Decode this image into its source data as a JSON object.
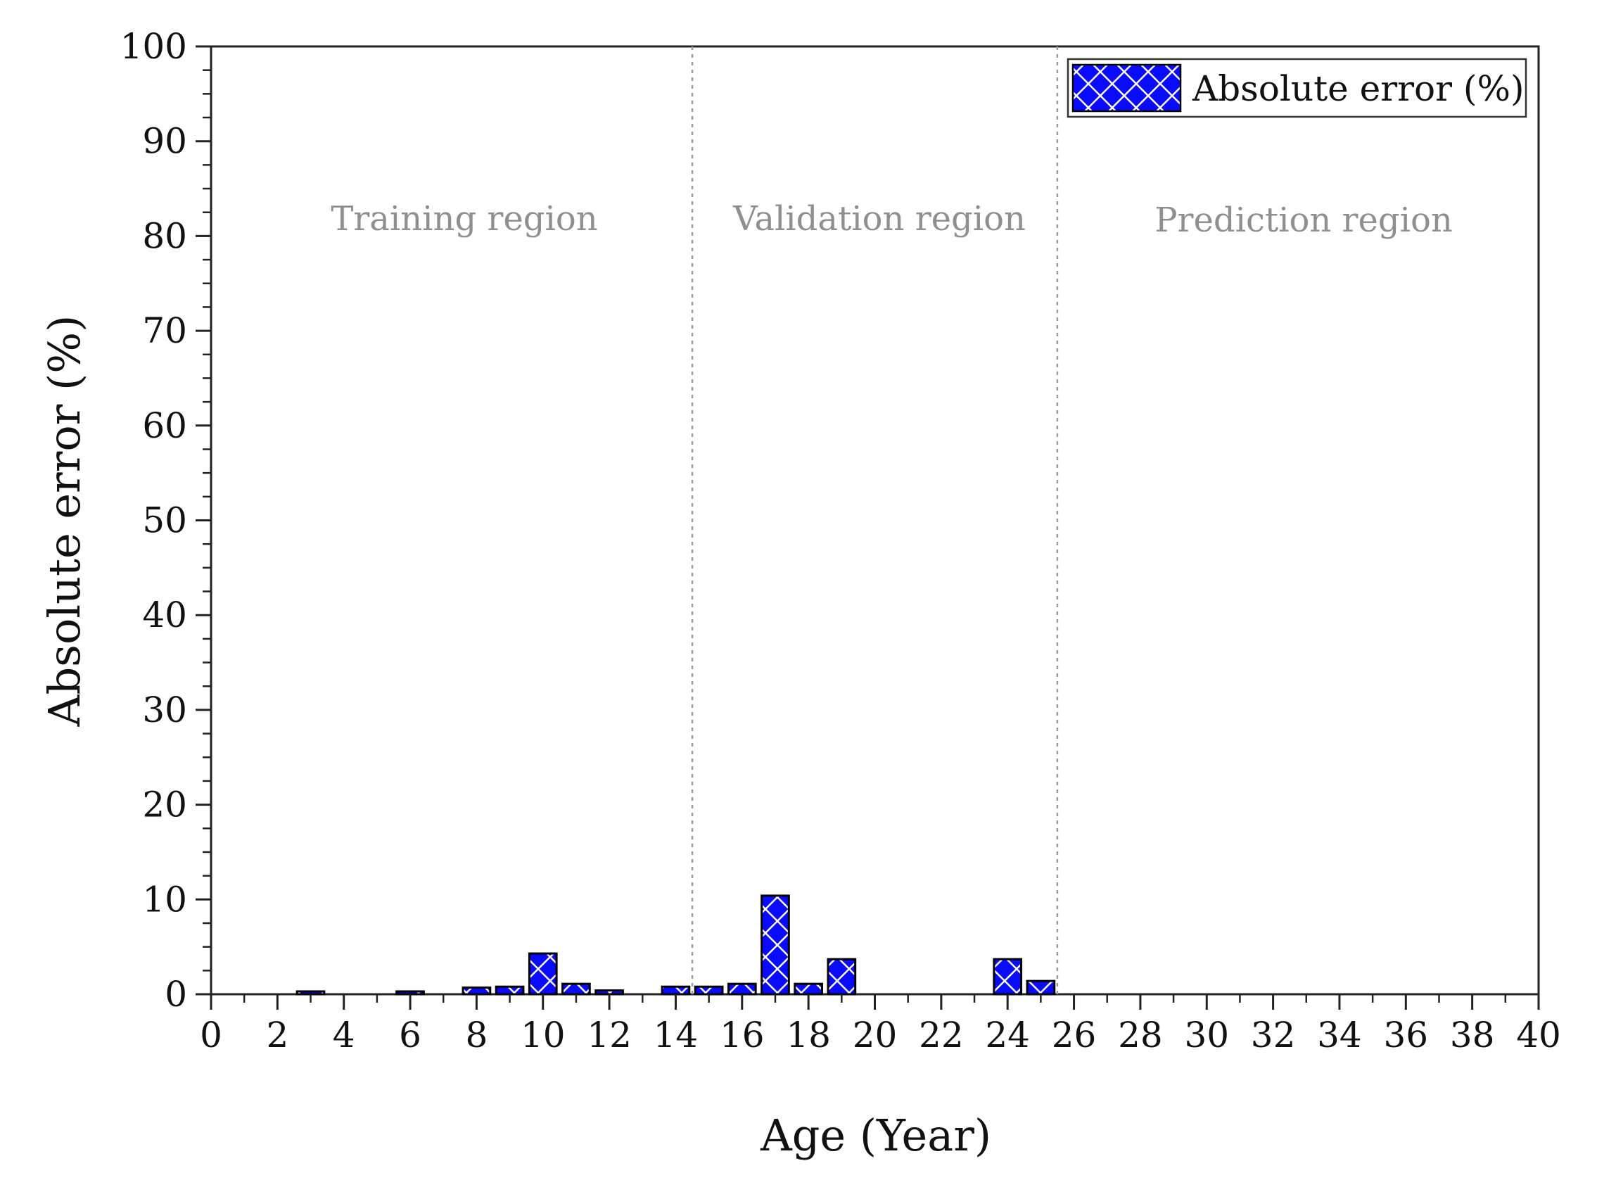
{
  "chart_data": {
    "type": "bar",
    "title": "",
    "xlabel": "Age (Year)",
    "ylabel": "Absolute error (%)",
    "xlim": [
      0,
      40
    ],
    "ylim": [
      0,
      100
    ],
    "x_ticks": [
      0,
      2,
      4,
      6,
      8,
      10,
      12,
      14,
      16,
      18,
      20,
      22,
      24,
      26,
      28,
      30,
      32,
      34,
      36,
      38,
      40
    ],
    "y_ticks": [
      0,
      10,
      20,
      30,
      40,
      50,
      60,
      70,
      80,
      90,
      100
    ],
    "grid": false,
    "legend": {
      "position": "top-right",
      "entries": [
        "Absolute error (%)"
      ]
    },
    "colors": {
      "bar": "#0a0aff",
      "bar_edge": "#000000",
      "hatch": "#ffffff",
      "divider": "#9a9a9a"
    },
    "series": [
      {
        "name": "Absolute error (%)",
        "x": [
          3,
          6,
          8,
          9,
          10,
          11,
          12,
          14,
          15,
          16,
          17,
          18,
          19,
          24,
          25
        ],
        "values": [
          0.3,
          0.3,
          0.7,
          0.8,
          4.3,
          1.1,
          0.4,
          0.8,
          0.8,
          1.1,
          10.4,
          1.1,
          3.7,
          3.7,
          1.4
        ]
      }
    ],
    "regions": [
      {
        "label": "Training region",
        "from": 0,
        "to": 14.5
      },
      {
        "label": "Validation region",
        "from": 14.5,
        "to": 25.5
      },
      {
        "label": "Prediction region",
        "from": 25.5,
        "to": 40
      }
    ],
    "dividers": [
      14.5,
      25.5
    ]
  }
}
